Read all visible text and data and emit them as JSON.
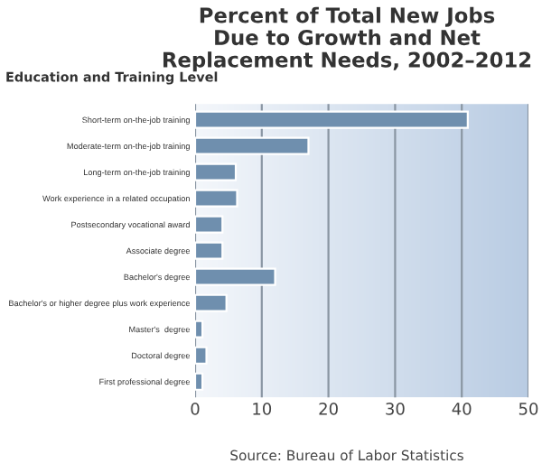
{
  "chart_data": {
    "type": "bar",
    "orientation": "horizontal",
    "title": "Percent of Total New Jobs\nDue to Growth and Net\nReplacement Needs, 2002–2012",
    "ylabel": "Education and Training Level",
    "categories": [
      "Short-term on-the-job training",
      "Moderate-term on-the-job training",
      "Long-term on-the-job training",
      "Work experience in a related occupation",
      "Postsecondary vocational award",
      "Associate degree",
      "Bachelor's degree",
      "Bachelor's or higher degree plus work experience",
      "Master's  degree",
      "Doctoral degree",
      "First professional degree"
    ],
    "values": [
      40.9,
      17.0,
      6.1,
      6.3,
      4.1,
      4.1,
      12.0,
      4.7,
      1.1,
      1.7,
      1.1
    ],
    "color": "#6f8fae",
    "xlim": [
      0,
      50
    ],
    "xticks": [
      0,
      10,
      20,
      30,
      40,
      50
    ],
    "grid": "x",
    "annotations": [
      "Source: Bureau of Labor Statistics"
    ]
  }
}
